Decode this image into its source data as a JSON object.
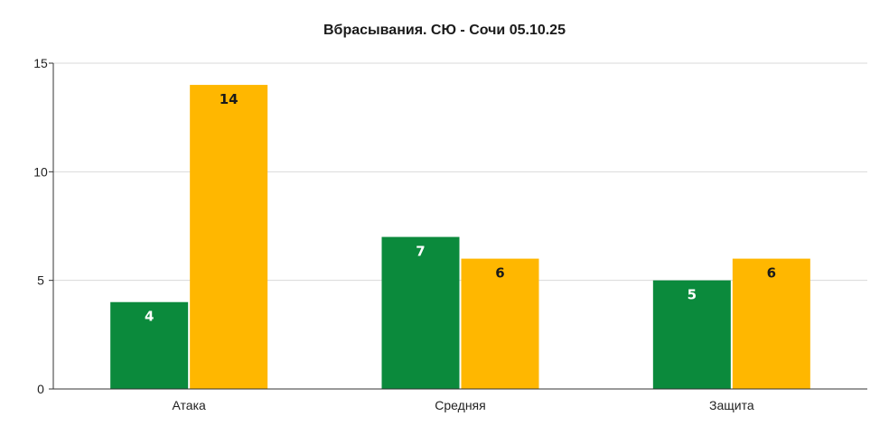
{
  "chart_data": {
    "type": "bar",
    "title": "Вбрасывания. СЮ - Сочи 05.10.25",
    "categories": [
      "Атака",
      "Средняя",
      "Защита"
    ],
    "series": [
      {
        "values": [
          4,
          7,
          5
        ],
        "color": "#0b8a3c",
        "label_color": "#ffffff"
      },
      {
        "values": [
          14,
          6,
          6
        ],
        "color": "#ffb700",
        "label_color": "#1a1a1a"
      }
    ],
    "ylim": [
      0,
      15
    ],
    "yticks": [
      0,
      5,
      10,
      15
    ],
    "grid": true,
    "legend": "none"
  }
}
